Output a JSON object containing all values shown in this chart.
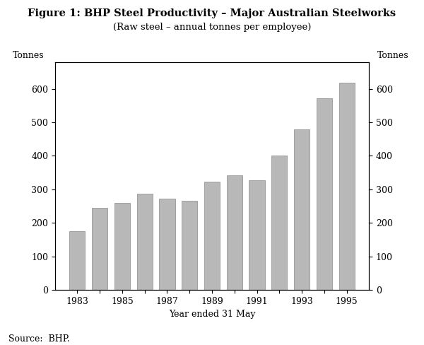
{
  "title": "Figure 1: BHP Steel Productivity – Major Australian Steelworks",
  "subtitle": "(Raw steel – annual tonnes per employee)",
  "xlabel": "Year ended 31 May",
  "ylabel_left": "Tonnes",
  "ylabel_right": "Tonnes",
  "source": "Source:  BHP.",
  "years": [
    1983,
    1984,
    1985,
    1986,
    1987,
    1988,
    1989,
    1990,
    1991,
    1992,
    1993,
    1994,
    1995
  ],
  "values": [
    175,
    245,
    260,
    287,
    273,
    265,
    322,
    342,
    327,
    400,
    480,
    573,
    618
  ],
  "bar_color": "#b8b8b8",
  "bar_edge_color": "#888888",
  "ylim": [
    0,
    680
  ],
  "yticks": [
    0,
    100,
    200,
    300,
    400,
    500,
    600
  ],
  "xtick_labels": [
    "1983",
    "",
    "1985",
    "",
    "1987",
    "",
    "1989",
    "",
    "1991",
    "",
    "1993",
    "",
    "1995"
  ],
  "background_color": "#ffffff",
  "title_fontsize": 10.5,
  "subtitle_fontsize": 9.5,
  "axis_label_fontsize": 9,
  "tick_fontsize": 9,
  "source_fontsize": 9
}
